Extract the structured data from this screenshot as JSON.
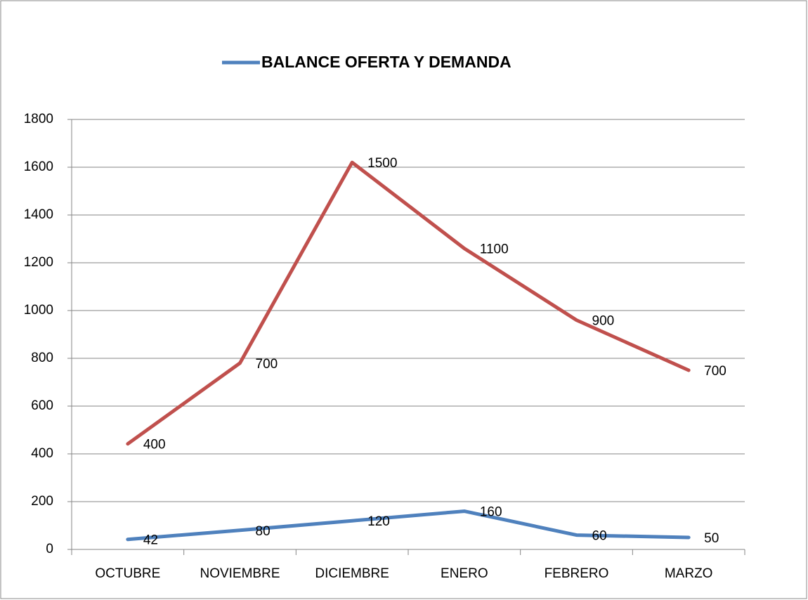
{
  "chart_data": {
    "type": "line",
    "stacked": true,
    "categories": [
      "OCTUBRE",
      "NOVIEMBRE",
      "DICIEMBRE",
      "ENERO",
      "FEBRERO",
      "MARZO"
    ],
    "series": [
      {
        "name": "BALANCE OFERTA Y DEMANDA",
        "color": "#4f81bd",
        "values": [
          42,
          80,
          120,
          160,
          60,
          50
        ]
      },
      {
        "color": "#c0504d",
        "values": [
          400,
          700,
          1500,
          1100,
          900,
          700
        ]
      }
    ],
    "ylim": [
      0,
      1800
    ],
    "yticks": [
      0,
      200,
      400,
      600,
      800,
      1000,
      1200,
      1400,
      1600,
      1800
    ],
    "grid": true,
    "legend": "top"
  }
}
